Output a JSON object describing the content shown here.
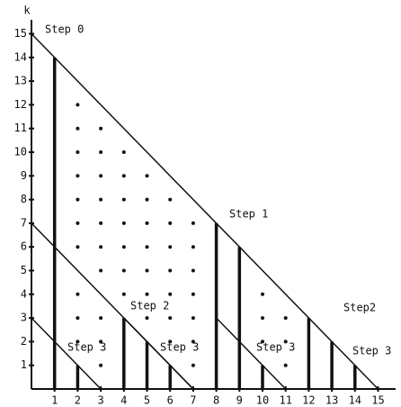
{
  "axis_label": "k",
  "x_ticks": [
    "1",
    "2",
    "3",
    "4",
    "5",
    "6",
    "7",
    "8",
    "9",
    "10",
    "11",
    "12",
    "13",
    "14",
    "15"
  ],
  "y_ticks": [
    "1",
    "2",
    "3",
    "4",
    "5",
    "6",
    "7",
    "8",
    "9",
    "10",
    "11",
    "12",
    "13",
    "14",
    "15"
  ],
  "step_labels": [
    "Step 0",
    "Step 1",
    "Step 2",
    "Step2",
    "Step 3",
    "Step 3",
    "Step 3",
    "Step 3"
  ]
}
